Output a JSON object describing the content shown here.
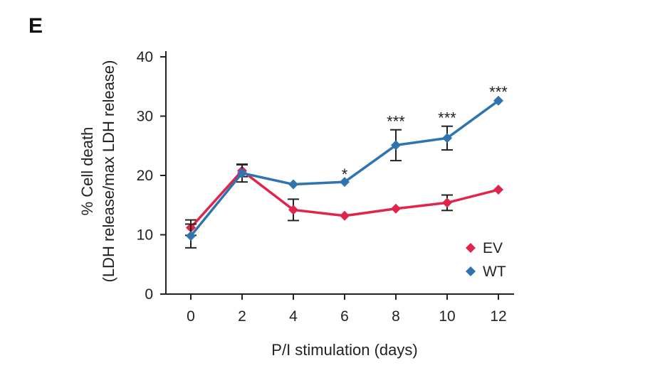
{
  "panel_label": "E",
  "chart_data": {
    "type": "line",
    "title": "",
    "xlabel": "P/I stimulation (days)",
    "ylabel_line1": "% Cell death",
    "ylabel_line2": "(LDH release/max LDH release)",
    "x": [
      0,
      2,
      4,
      6,
      8,
      10,
      12
    ],
    "xlim": [
      0,
      12
    ],
    "ylim": [
      0,
      40
    ],
    "yticks": [
      0,
      10,
      20,
      30,
      40
    ],
    "xticks": [
      0,
      2,
      4,
      6,
      8,
      10,
      12
    ],
    "grid": false,
    "legend_position": "lower-right",
    "series": [
      {
        "name": "EV",
        "color": "#e0254a",
        "marker": "diamond",
        "values": [
          11.2,
          20.8,
          14.2,
          13.2,
          14.4,
          15.4,
          17.6
        ],
        "errors": [
          1.3,
          1.0,
          1.8,
          0,
          0,
          1.3,
          0
        ]
      },
      {
        "name": "WT",
        "color": "#2f74b0",
        "marker": "diamond",
        "values": [
          9.8,
          20.4,
          18.5,
          18.9,
          25.1,
          26.3,
          32.6
        ],
        "errors": [
          2.0,
          1.5,
          0,
          0,
          2.6,
          2.0,
          0
        ]
      }
    ],
    "annotations": [
      {
        "x": 6,
        "text": "*",
        "y": 19.3
      },
      {
        "x": 8,
        "text": "***",
        "y": 28.2
      },
      {
        "x": 10,
        "text": "***",
        "y": 28.8
      },
      {
        "x": 12,
        "text": "***",
        "y": 33.2
      }
    ]
  }
}
